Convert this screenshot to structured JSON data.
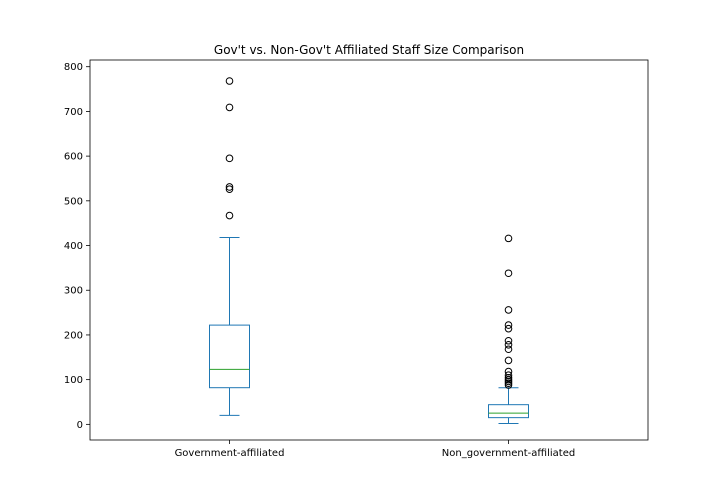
{
  "chart_data": {
    "type": "box",
    "title": "Gov't vs. Non-Gov't Affiliated Staff Size Comparison",
    "xlabel": "",
    "ylabel": "",
    "ylim": [
      -35,
      815
    ],
    "yticks": [
      0,
      100,
      200,
      300,
      400,
      500,
      600,
      700,
      800
    ],
    "grid": false,
    "categories": [
      "Government-affiliated",
      "Non_government-affiliated"
    ],
    "boxes": [
      {
        "category": "Government-affiliated",
        "whisker_low": 20,
        "q1": 82,
        "median": 123,
        "q3": 222,
        "whisker_high": 418,
        "outliers": [
          467,
          526,
          531,
          595,
          709,
          768
        ]
      },
      {
        "category": "Non_government-affiliated",
        "whisker_low": 2,
        "q1": 15,
        "median": 25,
        "q3": 44,
        "whisker_high": 82,
        "outliers": [
          88,
          92,
          96,
          100,
          104,
          110,
          118,
          143,
          168,
          178,
          187,
          214,
          222,
          256,
          338,
          416
        ]
      }
    ],
    "colors": {
      "box": "#1f77b4",
      "median": "#2ca02c",
      "outlier_edge": "#000000",
      "axes": "#000000"
    }
  }
}
